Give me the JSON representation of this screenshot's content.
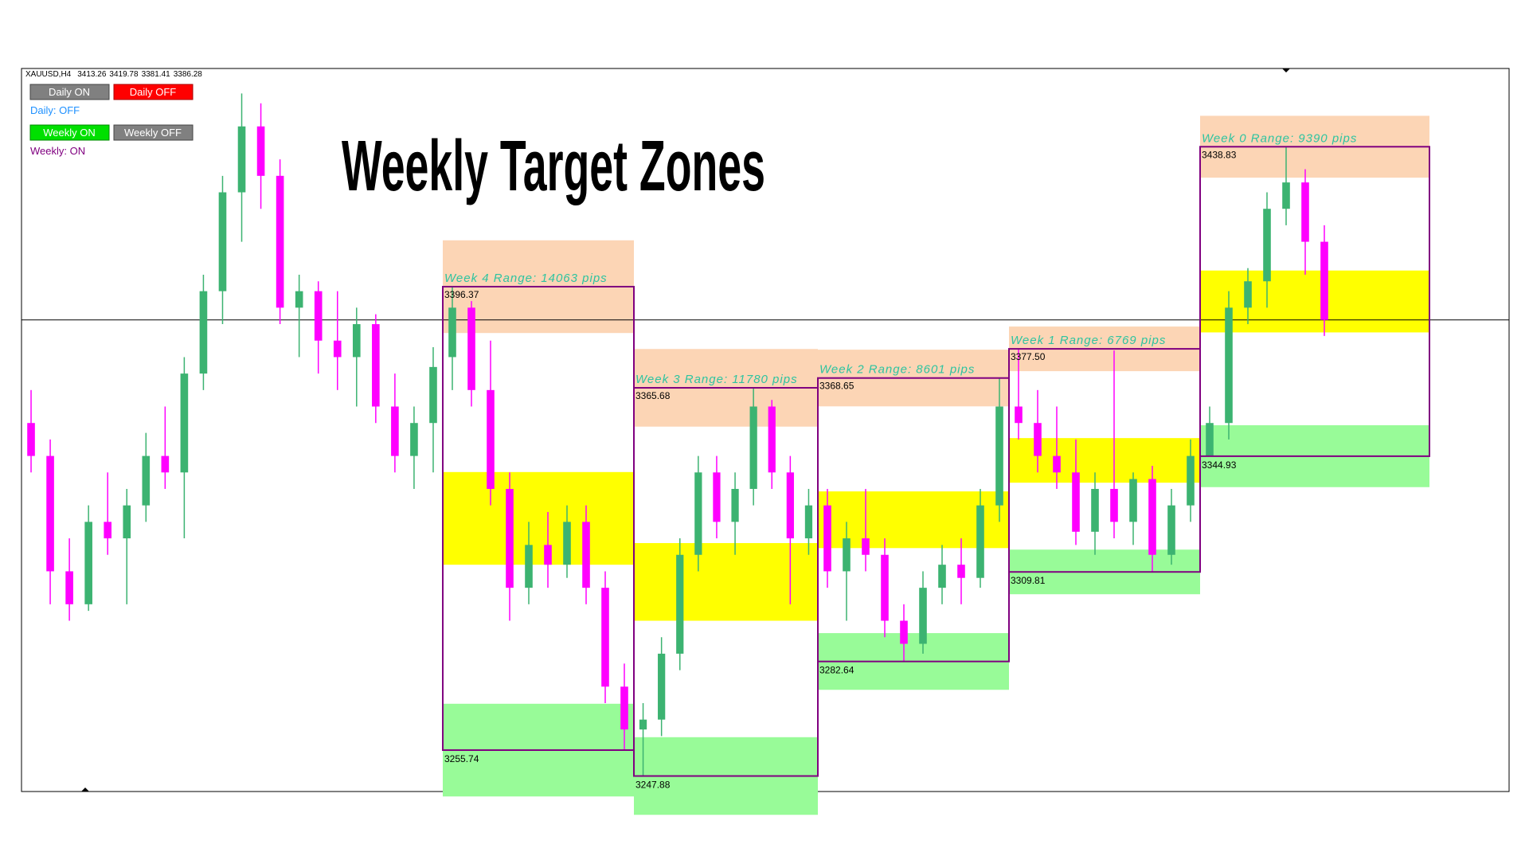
{
  "header": {
    "symbol": "XAUUSD,H4",
    "ohlc": [
      3413.26,
      3419.78,
      3381.41,
      3386.28
    ]
  },
  "controls": {
    "daily_on": "Daily ON",
    "daily_off": "Daily OFF",
    "daily_status": "Daily: OFF",
    "weekly_on": "Weekly ON",
    "weekly_off": "Weekly OFF",
    "weekly_status": "Weekly: ON"
  },
  "title": "Weekly Target Zones",
  "history": [
    [
      3355,
      3365,
      3340,
      3345
    ],
    [
      3345,
      3350,
      3300,
      3310
    ],
    [
      3310,
      3320,
      3295,
      3300
    ],
    [
      3300,
      3330,
      3298,
      3325
    ],
    [
      3325,
      3340,
      3315,
      3320
    ],
    [
      3320,
      3335,
      3300,
      3330
    ],
    [
      3330,
      3352,
      3325,
      3345
    ],
    [
      3345,
      3360,
      3335,
      3340
    ],
    [
      3340,
      3375,
      3320,
      3370
    ],
    [
      3370,
      3400,
      3365,
      3395
    ],
    [
      3395,
      3430,
      3385,
      3425
    ],
    [
      3425,
      3455,
      3410,
      3445
    ],
    [
      3445,
      3452,
      3420,
      3430
    ],
    [
      3430,
      3435,
      3385,
      3390
    ],
    [
      3390,
      3400,
      3375,
      3395
    ],
    [
      3395,
      3398,
      3370,
      3380
    ],
    [
      3380,
      3395,
      3365,
      3375
    ],
    [
      3375,
      3390,
      3360,
      3385
    ],
    [
      3385,
      3388,
      3355,
      3360
    ],
    [
      3360,
      3370,
      3340,
      3345
    ],
    [
      3345,
      3360,
      3335,
      3355
    ],
    [
      3355,
      3378,
      3340,
      3372
    ]
  ],
  "weeks": [
    {
      "label": "Week 4 Range: 14063 pips",
      "high": 3396.37,
      "low": 3255.74,
      "candles": [
        [
          3375,
          3396.37,
          3365,
          3390
        ],
        [
          3390,
          3392,
          3360,
          3365
        ],
        [
          3365,
          3380,
          3330,
          3335
        ],
        [
          3335,
          3340,
          3295,
          3305
        ],
        [
          3305,
          3325,
          3300,
          3318
        ],
        [
          3318,
          3328,
          3305,
          3312
        ],
        [
          3312,
          3330,
          3308,
          3325
        ],
        [
          3325,
          3330,
          3300,
          3305
        ],
        [
          3305,
          3310,
          3270,
          3275
        ],
        [
          3275,
          3282,
          3255.74,
          3262
        ]
      ]
    },
    {
      "label": "Week 3 Range: 11780 pips",
      "high": 3365.68,
      "low": 3247.88,
      "candles": [
        [
          3262,
          3270,
          3247.88,
          3265
        ],
        [
          3265,
          3290,
          3260,
          3285
        ],
        [
          3285,
          3320,
          3280,
          3315
        ],
        [
          3315,
          3345,
          3310,
          3340
        ],
        [
          3340,
          3345,
          3320,
          3325
        ],
        [
          3325,
          3340,
          3315,
          3335
        ],
        [
          3335,
          3365.68,
          3330,
          3360
        ],
        [
          3360,
          3362,
          3335,
          3340
        ],
        [
          3340,
          3345,
          3300,
          3320
        ],
        [
          3320,
          3335,
          3315,
          3330
        ]
      ]
    },
    {
      "label": "Week 2 Range: 8601 pips",
      "high": 3368.65,
      "low": 3282.64,
      "candles": [
        [
          3330,
          3335,
          3305,
          3310
        ],
        [
          3310,
          3325,
          3295,
          3320
        ],
        [
          3320,
          3335,
          3310,
          3315
        ],
        [
          3315,
          3320,
          3290,
          3295
        ],
        [
          3295,
          3300,
          3282.64,
          3288
        ],
        [
          3288,
          3310,
          3285,
          3305
        ],
        [
          3305,
          3318,
          3300,
          3312
        ],
        [
          3312,
          3320,
          3300,
          3308
        ],
        [
          3308,
          3335,
          3305,
          3330
        ],
        [
          3330,
          3368.65,
          3325,
          3360
        ]
      ]
    },
    {
      "label": "Week 1 Range: 6769 pips",
      "high": {
        "value": 3377.5,
        "label": "3377.50"
      },
      "low": 3309.81,
      "candles": [
        [
          3360,
          3377.5,
          3350,
          3355
        ],
        [
          3355,
          3365,
          3340,
          3345
        ],
        [
          3345,
          3360,
          3335,
          3340
        ],
        [
          3340,
          3350,
          3318,
          3322
        ],
        [
          3322,
          3340,
          3315,
          3335
        ],
        [
          3335,
          3377,
          3320,
          3325
        ],
        [
          3325,
          3340,
          3318,
          3338
        ],
        [
          3338,
          3342,
          3309.81,
          3315
        ],
        [
          3315,
          3335,
          3312,
          3330
        ],
        [
          3330,
          3350,
          3325,
          3345
        ]
      ]
    },
    {
      "label": "Week 0 Range: 9390 pips",
      "high": 3438.83,
      "low": 3344.93,
      "candles": [
        [
          3345,
          3360,
          3344.93,
          3355
        ],
        [
          3355,
          3395,
          3350,
          3390
        ],
        [
          3390,
          3402,
          3385,
          3398
        ],
        [
          3398,
          3425,
          3390,
          3420
        ],
        [
          3420,
          3438.83,
          3415,
          3428
        ],
        [
          3428,
          3432,
          3400,
          3410
        ],
        [
          3410,
          3415,
          3381.41,
          3386.28
        ]
      ]
    }
  ]
}
